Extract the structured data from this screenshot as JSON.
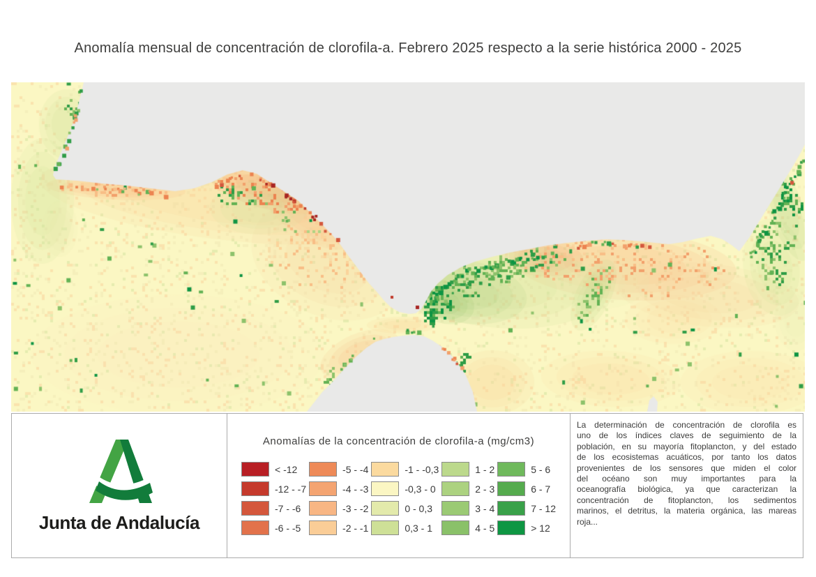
{
  "page": {
    "title": "Anomalía mensual de concentración de clorofila-a. Febrero 2025 respecto a la serie histórica 2000 - 2025"
  },
  "map": {
    "land_color": "#E9E9E8",
    "sea_base_color": "#FBF7C3",
    "palette": {
      "speckYellow": "#F5EFBB",
      "speckOrange": "#FAE3AE",
      "paleOrange": "#FBD49B",
      "midOrange": "#F8BE86",
      "orange": "#F2A06B",
      "deepOrange": "#EC8350",
      "paleGreen": "#E6ECB0",
      "lightGreen": "#D0E19A",
      "green1": "#AFD383",
      "green2": "#8DC26B",
      "green3": "#63B254",
      "green4": "#2F9D47",
      "darkGreen": "#0D9443",
      "red1": "#D4573C",
      "red2": "#C03A2B",
      "red3": "#A82623"
    }
  },
  "footer": {
    "logo": {
      "org_name": "Junta de Andalucía",
      "colors": {
        "light": "#43A444",
        "dark": "#127C3B",
        "text": "#1D1D1B"
      }
    },
    "legend": {
      "title": "Anomalías de la concentración de clorofila-a (mg/cm3)",
      "columns": [
        [
          {
            "label": "< -12",
            "color": "#B81F24"
          },
          {
            "label": "-12 - -7",
            "color": "#C53A2C"
          },
          {
            "label": "-7 - -6",
            "color": "#D4573C"
          },
          {
            "label": "-6 - -5",
            "color": "#E2724B"
          }
        ],
        [
          {
            "label": "-5 - -4",
            "color": "#EE8A58"
          },
          {
            "label": "-4 - -3",
            "color": "#F4A471"
          },
          {
            "label": "-3 - -2",
            "color": "#F8B684"
          },
          {
            "label": "-2 - -1",
            "color": "#FACD97"
          }
        ],
        [
          {
            "label": "-1 - -0,3",
            "color": "#FBDA9F"
          },
          {
            "label": "-0,3 - 0",
            "color": "#FBF6C3"
          },
          {
            "label": "0 - 0,3",
            "color": "#E3EAAB"
          },
          {
            "label": "0,3 - 1",
            "color": "#CEE097"
          }
        ],
        [
          {
            "label": "1 - 2",
            "color": "#BCD98C"
          },
          {
            "label": "2 - 3",
            "color": "#ACD280"
          },
          {
            "label": "3 - 4",
            "color": "#9BCA74"
          },
          {
            "label": "4 - 5",
            "color": "#8AC169"
          }
        ],
        [
          {
            "label": "5 - 6",
            "color": "#6FB95C"
          },
          {
            "label": "6 - 7",
            "color": "#55AB4E"
          },
          {
            "label": "7 - 12",
            "color": "#39A149"
          },
          {
            "label": "> 12",
            "color": "#0E9643"
          }
        ]
      ]
    },
    "info": {
      "text": "La determinación de concentración de clorofila es uno de los índices claves de seguimiento de la población, en su mayoría fitoplancton, y del estado de los ecosistemas acuáticos, por tanto los datos provenientes de los sensores que miden el color del océano son muy importantes para la oceanografía biológica, ya que caracterizan la concentración de fitoplancton, los sedimentos marinos, el detritus, la materia orgánica, las mareas roja..."
    }
  }
}
